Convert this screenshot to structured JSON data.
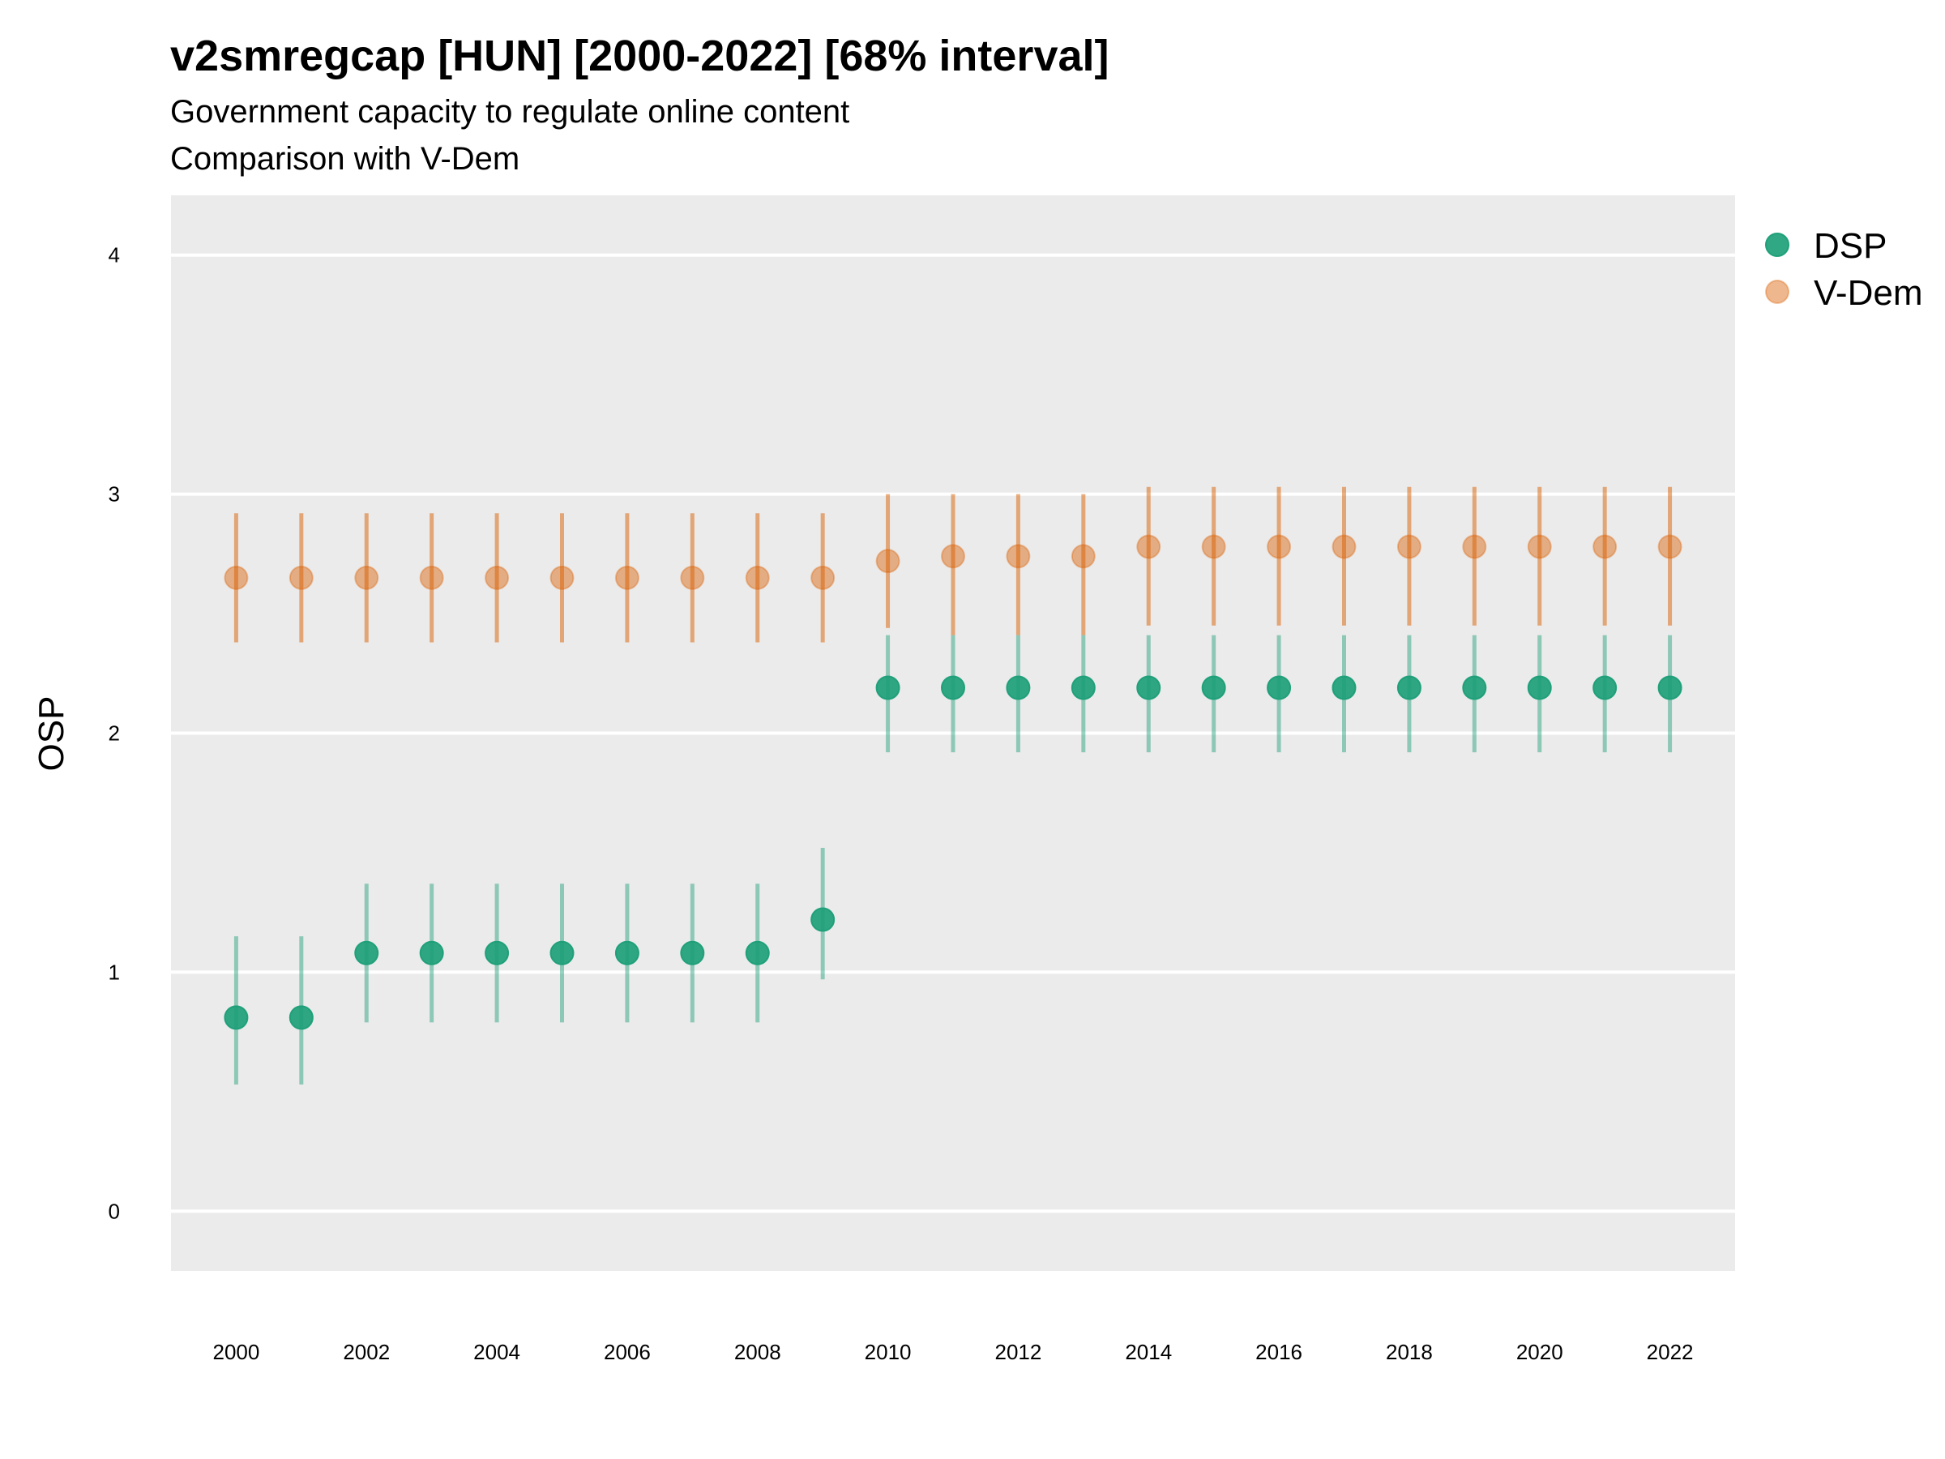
{
  "chart_data": {
    "type": "scatter",
    "title": "v2smregcap [HUN] [2000-2022] [68% interval]",
    "subtitle_lines": [
      "Government capacity to regulate online content",
      "Comparison with V-Dem"
    ],
    "xlabel": "",
    "ylabel": "OSP",
    "x": [
      2000,
      2001,
      2002,
      2003,
      2004,
      2005,
      2006,
      2007,
      2008,
      2009,
      2010,
      2011,
      2012,
      2013,
      2014,
      2015,
      2016,
      2017,
      2018,
      2019,
      2020,
      2021,
      2022
    ],
    "x_ticks": [
      "2000",
      "2002",
      "2004",
      "2006",
      "2008",
      "2010",
      "2012",
      "2014",
      "2016",
      "2018",
      "2020",
      "2022"
    ],
    "y_ticks": [
      "0",
      "1",
      "2",
      "3",
      "4"
    ],
    "xlim": [
      1999,
      2023
    ],
    "ylim": [
      -0.25,
      4.25
    ],
    "grid": true,
    "legend_position": "right",
    "series": [
      {
        "name": "DSP",
        "color": "#1b9e77",
        "values": [
          0.81,
          0.81,
          1.08,
          1.08,
          1.08,
          1.08,
          1.08,
          1.08,
          1.08,
          1.22,
          2.19,
          2.19,
          2.19,
          2.19,
          2.19,
          2.19,
          2.19,
          2.19,
          2.19,
          2.19,
          2.19,
          2.19,
          2.19
        ],
        "lower": [
          0.53,
          0.53,
          0.79,
          0.79,
          0.79,
          0.79,
          0.79,
          0.79,
          0.79,
          0.97,
          1.92,
          1.92,
          1.92,
          1.92,
          1.92,
          1.92,
          1.92,
          1.92,
          1.92,
          1.92,
          1.92,
          1.92,
          1.92
        ],
        "upper": [
          1.15,
          1.15,
          1.37,
          1.37,
          1.37,
          1.37,
          1.37,
          1.37,
          1.37,
          1.52,
          2.41,
          2.41,
          2.41,
          2.41,
          2.41,
          2.41,
          2.41,
          2.41,
          2.41,
          2.41,
          2.41,
          2.41,
          2.41
        ]
      },
      {
        "name": "V-Dem",
        "color": "#d95f02",
        "values": [
          2.65,
          2.65,
          2.65,
          2.65,
          2.65,
          2.65,
          2.65,
          2.65,
          2.65,
          2.65,
          2.72,
          2.74,
          2.74,
          2.74,
          2.78,
          2.78,
          2.78,
          2.78,
          2.78,
          2.78,
          2.78,
          2.78,
          2.78
        ],
        "lower": [
          2.38,
          2.38,
          2.38,
          2.38,
          2.38,
          2.38,
          2.38,
          2.38,
          2.38,
          2.38,
          2.44,
          2.41,
          2.41,
          2.41,
          2.45,
          2.45,
          2.45,
          2.45,
          2.45,
          2.45,
          2.45,
          2.45,
          2.45
        ],
        "upper": [
          2.92,
          2.92,
          2.92,
          2.92,
          2.92,
          2.92,
          2.92,
          2.92,
          2.92,
          2.92,
          3.0,
          3.0,
          3.0,
          3.0,
          3.03,
          3.03,
          3.03,
          3.03,
          3.03,
          3.03,
          3.03,
          3.03,
          3.03
        ]
      }
    ]
  }
}
